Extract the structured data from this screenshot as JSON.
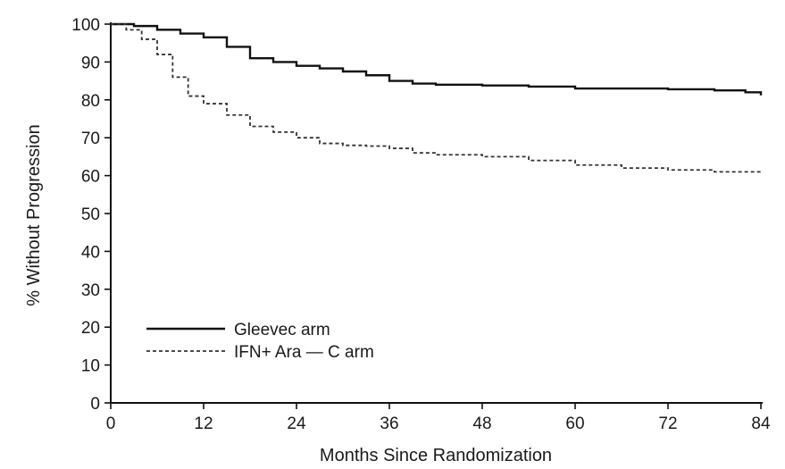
{
  "chart_data": {
    "type": "line",
    "title": "",
    "xlabel": "Months Since Randomization",
    "ylabel": "% Without Progression",
    "xlim": [
      0,
      84
    ],
    "ylim": [
      0,
      100
    ],
    "xticks": [
      0,
      12,
      24,
      36,
      48,
      60,
      72,
      84
    ],
    "yticks": [
      0,
      10,
      20,
      30,
      40,
      50,
      60,
      70,
      80,
      90,
      100
    ],
    "grid": false,
    "legend_position": "bottom-left",
    "series": [
      {
        "name": "Gleevec arm",
        "style": "solid",
        "color": "#111111",
        "x": [
          0,
          3,
          6,
          9,
          12,
          15,
          18,
          21,
          24,
          27,
          30,
          33,
          36,
          39,
          42,
          48,
          54,
          60,
          66,
          72,
          78,
          82,
          84
        ],
        "y": [
          100,
          99.5,
          98.5,
          97.5,
          96.5,
          94,
          91,
          90,
          89,
          88.3,
          87.5,
          86.5,
          85,
          84.3,
          84,
          83.8,
          83.5,
          83,
          83,
          82.8,
          82.5,
          82,
          81.2
        ]
      },
      {
        "name": "IFN+ Ara — C arm",
        "style": "dashed",
        "color": "#333333",
        "x": [
          0,
          2,
          4,
          6,
          8,
          10,
          12,
          15,
          18,
          21,
          24,
          27,
          30,
          33,
          36,
          39,
          42,
          48,
          54,
          60,
          66,
          72,
          78,
          84
        ],
        "y": [
          100,
          98.5,
          96,
          92,
          86,
          81,
          79,
          76,
          73,
          71.5,
          70,
          68.5,
          68,
          67.8,
          67.2,
          66,
          65.5,
          65,
          64,
          62.8,
          62,
          61.5,
          61,
          60.5
        ]
      }
    ]
  }
}
